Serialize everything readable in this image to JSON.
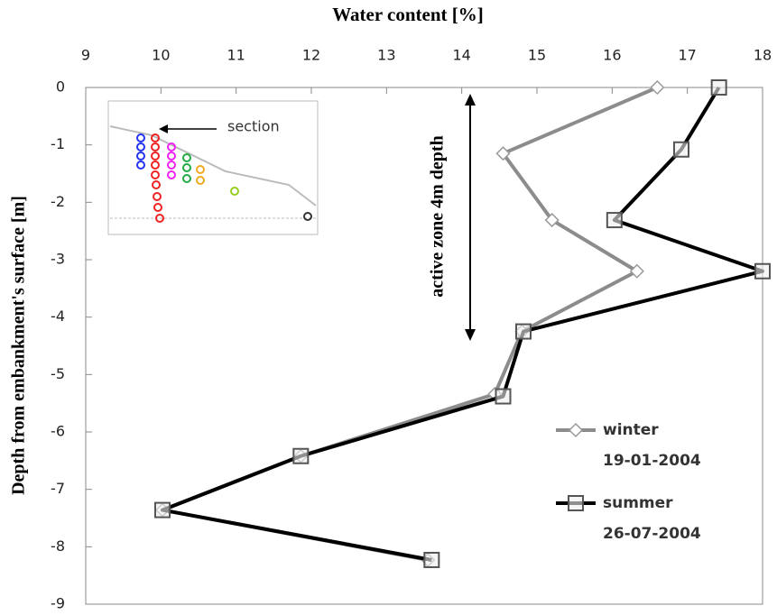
{
  "chart_data": {
    "type": "line",
    "title": "Water content [%]",
    "y_label": "Depth from embankment's surface [m]",
    "annotations": [
      "active zone 4m depth",
      "section"
    ],
    "xlim": [
      9,
      18
    ],
    "xticks": [
      9,
      10,
      11,
      12,
      13,
      14,
      15,
      16,
      17,
      18
    ],
    "ylim": [
      0,
      -9
    ],
    "yticks": [
      0,
      -1,
      -2,
      -3,
      -4,
      -5,
      -6,
      -7,
      -8,
      -9
    ],
    "legend": "lower right",
    "series": [
      {
        "name": "winter 19-01-2004",
        "color": "#8c8c8c",
        "marker": "diamond",
        "x": [
          16.6,
          14.55,
          15.2,
          16.33,
          14.8,
          14.44,
          11.86,
          10.02,
          13.55
        ],
        "values": [
          0,
          -1.15,
          -2.31,
          -3.2,
          -4.25,
          -5.34,
          -6.42,
          -7.36,
          -8.23
        ]
      },
      {
        "name": "summer 26-07-2004",
        "color": "#000000",
        "marker": "square",
        "x": [
          17.42,
          16.92,
          16.03,
          18,
          14.82,
          14.55,
          11.86,
          10.02,
          13.6
        ],
        "values": [
          0,
          -1.08,
          -2.31,
          -3.2,
          -4.25,
          -5.38,
          -6.42,
          -7.36,
          -8.23
        ]
      }
    ]
  }
}
